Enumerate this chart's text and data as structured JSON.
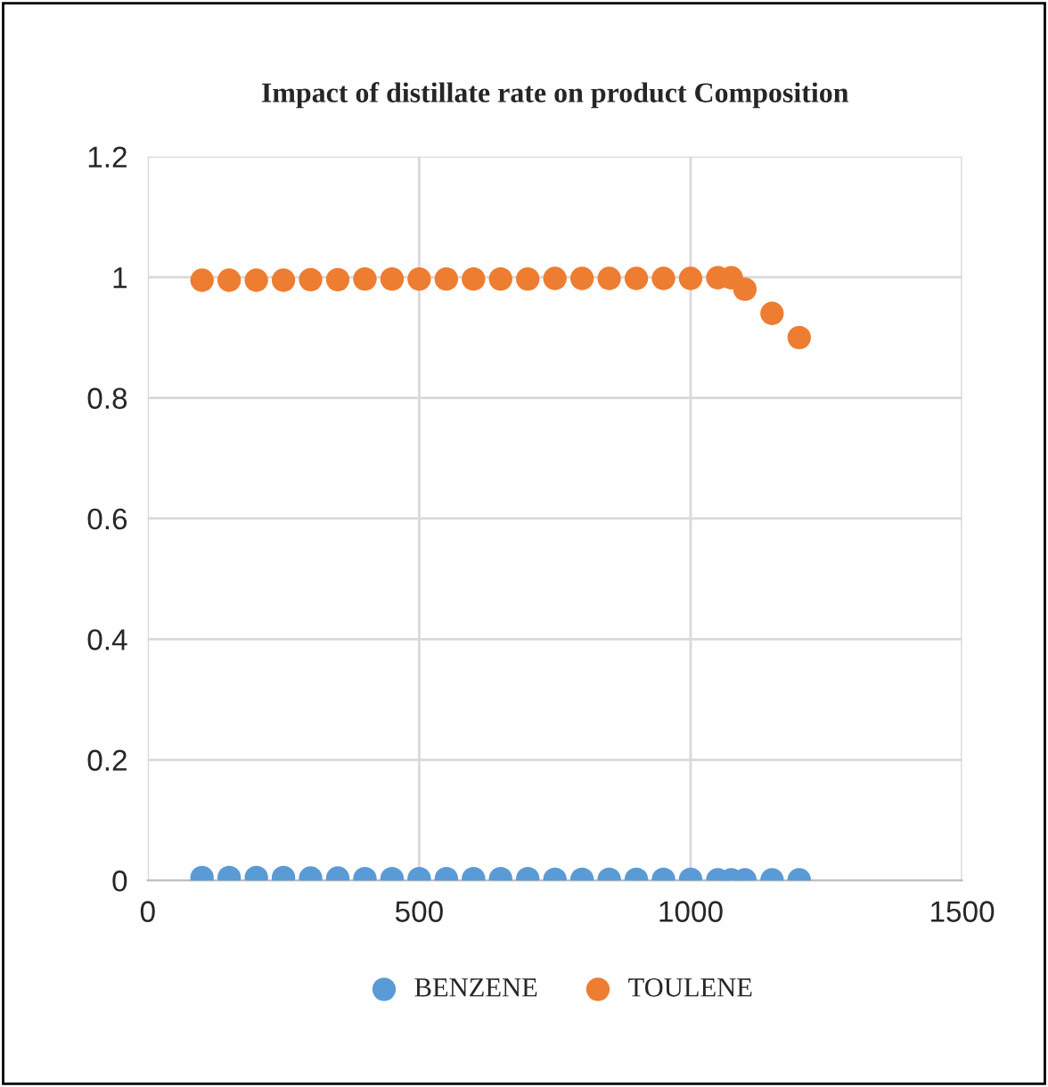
{
  "chart_data": {
    "type": "scatter",
    "title": "Impact of distillate rate on product Composition",
    "x": [
      100,
      150,
      200,
      250,
      300,
      350,
      400,
      450,
      500,
      550,
      600,
      650,
      700,
      750,
      800,
      850,
      900,
      950,
      1000,
      1050,
      1075,
      1100,
      1150,
      1200
    ],
    "series": [
      {
        "name": "BENZENE",
        "color": "#5b9bd5",
        "values": [
          0.005,
          0.005,
          0.005,
          0.005,
          0.004,
          0.004,
          0.003,
          0.003,
          0.003,
          0.003,
          0.003,
          0.003,
          0.003,
          0.002,
          0.002,
          0.002,
          0.002,
          0.002,
          0.002,
          0.001,
          0.001,
          0.001,
          0.001,
          0.001
        ]
      },
      {
        "name": "TOULENE",
        "color": "#ed7d31",
        "values": [
          0.995,
          0.995,
          0.995,
          0.995,
          0.996,
          0.996,
          0.997,
          0.997,
          0.997,
          0.997,
          0.997,
          0.997,
          0.997,
          0.998,
          0.998,
          0.998,
          0.998,
          0.998,
          0.998,
          0.999,
          0.999,
          0.98,
          0.94,
          0.9
        ]
      }
    ],
    "xlim": [
      0,
      1500
    ],
    "xticks": [
      0,
      500,
      1000,
      1500
    ],
    "ylim": [
      0,
      1.2
    ],
    "yticks": [
      0,
      0.2,
      0.4,
      0.6,
      0.8,
      1,
      1.2
    ],
    "grid": true,
    "legend": "bottom",
    "marker": "circle"
  }
}
